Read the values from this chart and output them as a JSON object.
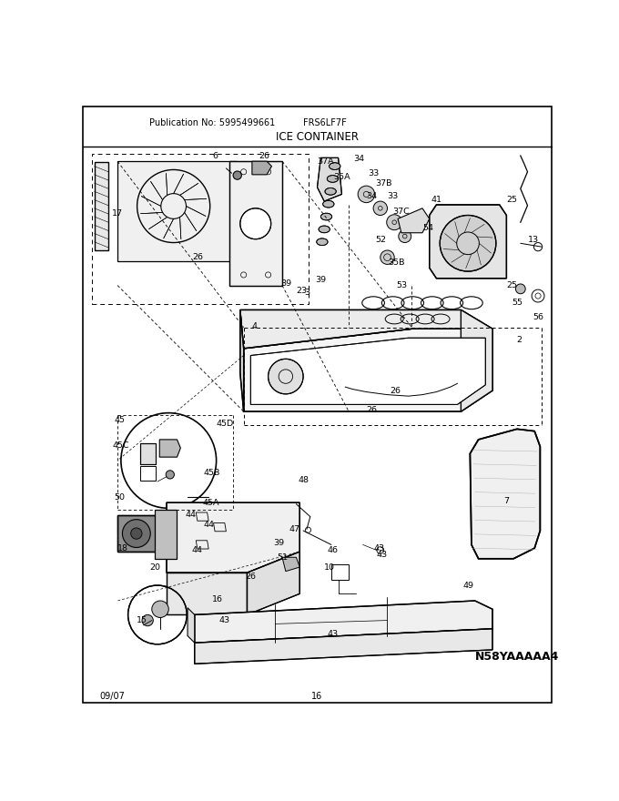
{
  "title": "ICE CONTAINER",
  "pub_no": "Publication No: 5995499661",
  "model": "FRS6LF7F",
  "diagram_id": "N58YAAAAA4",
  "date": "09/07",
  "page": "16",
  "bg_color": "#ffffff",
  "border_color": "#000000",
  "text_color": "#000000",
  "fig_width": 6.8,
  "fig_height": 8.8,
  "dpi": 100
}
